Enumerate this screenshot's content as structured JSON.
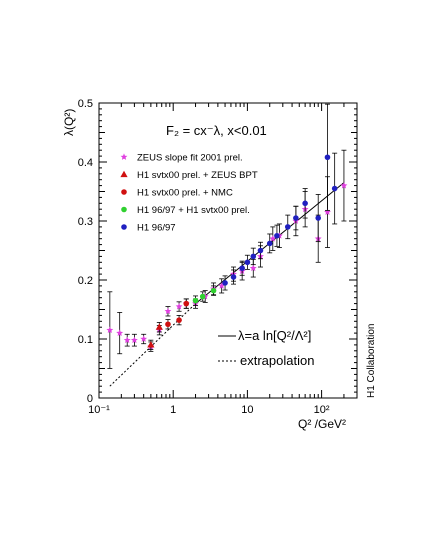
{
  "chart_data": {
    "type": "scatter",
    "title": "",
    "formula": "F₂ = cx⁻λ,  x<0.01",
    "xlabel": "Q² /GeV²",
    "ylabel": "λ(Q²)",
    "xscale": "log",
    "xlim": [
      0.1,
      300
    ],
    "ylim": [
      0,
      0.5
    ],
    "grid": false,
    "legend_position": "top-left",
    "x_ticks": [
      {
        "value": 0.1,
        "label": "10⁻¹"
      },
      {
        "value": 1,
        "label": "1"
      },
      {
        "value": 10,
        "label": "10"
      },
      {
        "value": 100,
        "label": "10²"
      }
    ],
    "y_ticks": [
      {
        "value": 0,
        "label": "0"
      },
      {
        "value": 0.1,
        "label": "0.1"
      },
      {
        "value": 0.2,
        "label": "0.2"
      },
      {
        "value": 0.3,
        "label": "0.3"
      },
      {
        "value": 0.4,
        "label": "0.4"
      },
      {
        "value": 0.5,
        "label": "0.5"
      }
    ],
    "series": [
      {
        "name": "ZEUS slope fit 2001 prel.",
        "marker": "star",
        "color": "#e040e0",
        "points": [
          {
            "x": 0.14,
            "y": 0.115,
            "err": 0.065
          },
          {
            "x": 0.19,
            "y": 0.11,
            "err": 0.035
          },
          {
            "x": 0.24,
            "y": 0.098,
            "err": 0.01
          },
          {
            "x": 0.3,
            "y": 0.098,
            "err": 0.01
          },
          {
            "x": 0.4,
            "y": 0.1,
            "err": 0.008
          },
          {
            "x": 0.5,
            "y": 0.087,
            "err": 0.008
          },
          {
            "x": 0.65,
            "y": 0.115,
            "err": 0.008
          },
          {
            "x": 0.85,
            "y": 0.147,
            "err": 0.008
          },
          {
            "x": 1.2,
            "y": 0.155,
            "err": 0.008
          },
          {
            "x": 1.5,
            "y": 0.16,
            "err": 0.008
          },
          {
            "x": 2.0,
            "y": 0.16,
            "err": 0.008
          },
          {
            "x": 2.7,
            "y": 0.172,
            "err": 0.01
          },
          {
            "x": 3.5,
            "y": 0.185,
            "err": 0.01
          },
          {
            "x": 4.5,
            "y": 0.19,
            "err": 0.012
          },
          {
            "x": 6.5,
            "y": 0.21,
            "err": 0.012
          },
          {
            "x": 8.5,
            "y": 0.215,
            "err": 0.015
          },
          {
            "x": 12,
            "y": 0.22,
            "err": 0.015
          },
          {
            "x": 15,
            "y": 0.24,
            "err": 0.018
          },
          {
            "x": 22,
            "y": 0.27,
            "err": 0.02
          },
          {
            "x": 27,
            "y": 0.275,
            "err": 0.02
          },
          {
            "x": 45,
            "y": 0.3,
            "err": 0.025
          },
          {
            "x": 60,
            "y": 0.32,
            "err": 0.03
          },
          {
            "x": 90,
            "y": 0.27,
            "err": 0.04
          },
          {
            "x": 120,
            "y": 0.315,
            "err": 0.06
          },
          {
            "x": 200,
            "y": 0.36,
            "err": 0.06
          }
        ]
      },
      {
        "name": "H1 svtx00 prel. + ZEUS BPT",
        "marker": "triangle",
        "color": "#d01010",
        "points": [
          {
            "x": 0.5,
            "y": 0.09,
            "err": 0.008
          },
          {
            "x": 0.65,
            "y": 0.12,
            "err": 0.008
          }
        ]
      },
      {
        "name": "H1 svtx00 prel. + NMC",
        "marker": "circle",
        "color": "#d01010",
        "points": [
          {
            "x": 0.85,
            "y": 0.125,
            "err": 0.008
          },
          {
            "x": 1.2,
            "y": 0.132,
            "err": 0.008
          },
          {
            "x": 1.5,
            "y": 0.16,
            "err": 0.008
          }
        ]
      },
      {
        "name": "H1 96/97 + H1 svtx00 prel.",
        "marker": "circle",
        "color": "#30d030",
        "points": [
          {
            "x": 2.0,
            "y": 0.165,
            "err": 0.008
          },
          {
            "x": 2.5,
            "y": 0.172,
            "err": 0.008
          },
          {
            "x": 3.5,
            "y": 0.182,
            "err": 0.008
          }
        ]
      },
      {
        "name": "H1 96/97",
        "marker": "circle",
        "color": "#2020c0",
        "points": [
          {
            "x": 5,
            "y": 0.195,
            "err": 0.012
          },
          {
            "x": 6.5,
            "y": 0.205,
            "err": 0.012
          },
          {
            "x": 8.5,
            "y": 0.22,
            "err": 0.012
          },
          {
            "x": 10,
            "y": 0.23,
            "err": 0.012
          },
          {
            "x": 12,
            "y": 0.24,
            "err": 0.014
          },
          {
            "x": 15,
            "y": 0.25,
            "err": 0.014
          },
          {
            "x": 20,
            "y": 0.262,
            "err": 0.016
          },
          {
            "x": 25,
            "y": 0.275,
            "err": 0.018
          },
          {
            "x": 35,
            "y": 0.29,
            "err": 0.02
          },
          {
            "x": 45,
            "y": 0.305,
            "err": 0.02
          },
          {
            "x": 60,
            "y": 0.33,
            "err": 0.025
          },
          {
            "x": 90,
            "y": 0.305,
            "err": 0.04
          },
          {
            "x": 120,
            "y": 0.408,
            "err": 0.09
          },
          {
            "x": 150,
            "y": 0.355,
            "err": 0.06
          }
        ]
      }
    ],
    "fit_line": {
      "label": "λ=a ln[Q²/Λ²]",
      "points": [
        [
          2.0,
          0.16
        ],
        [
          200,
          0.365
        ]
      ]
    },
    "extrapolation": {
      "label": "extrapolation",
      "points": [
        [
          0.14,
          0.02
        ],
        [
          2.0,
          0.16
        ]
      ]
    },
    "side_label": "H1 Collaboration"
  }
}
